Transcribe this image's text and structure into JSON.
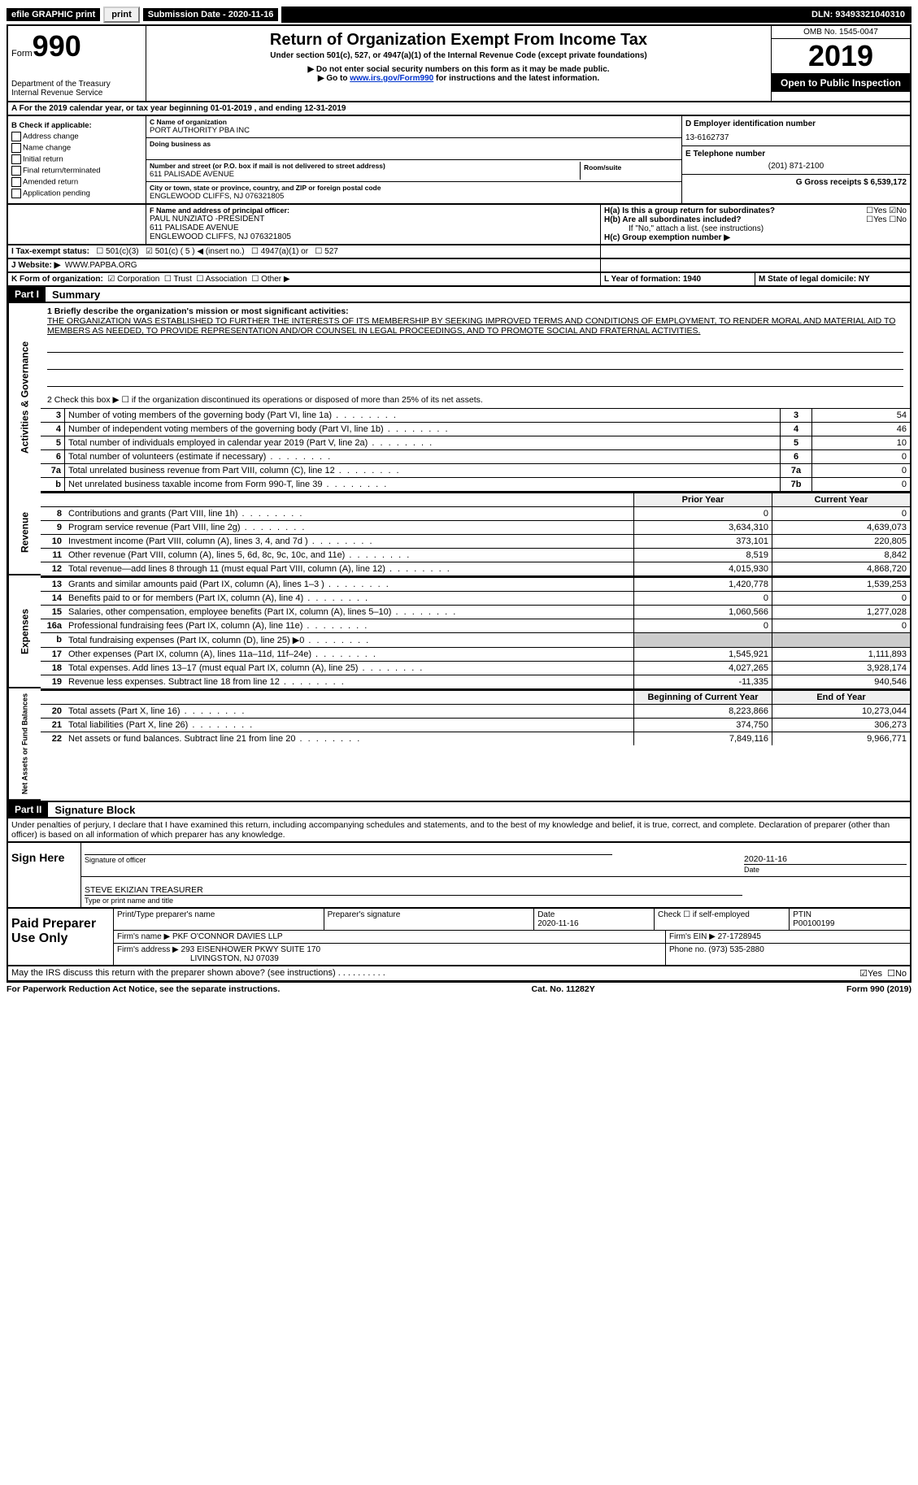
{
  "top": {
    "efile_label": "efile GRAPHIC print",
    "submission_label": "Submission Date - 2020-11-16",
    "dln_label": "DLN: 93493321040310"
  },
  "header": {
    "form_prefix": "Form",
    "form_number": "990",
    "dept1": "Department of the Treasury",
    "dept2": "Internal Revenue Service",
    "title": "Return of Organization Exempt From Income Tax",
    "subtitle": "Under section 501(c), 527, or 4947(a)(1) of the Internal Revenue Code (except private foundations)",
    "note1": "▶ Do not enter social security numbers on this form as it may be made public.",
    "note2_prefix": "▶ Go to ",
    "note2_link": "www.irs.gov/Form990",
    "note2_suffix": " for instructions and the latest information.",
    "omb": "OMB No. 1545-0047",
    "year": "2019",
    "open": "Open to Public Inspection"
  },
  "rowA": "A For the 2019 calendar year, or tax year beginning 01-01-2019   , and ending 12-31-2019",
  "checkB": {
    "title": "B Check if applicable:",
    "items": [
      "Address change",
      "Name change",
      "Initial return",
      "Final return/terminated",
      "Amended return",
      "Application pending"
    ]
  },
  "entity": {
    "c_label": "C Name of organization",
    "c_name": "PORT AUTHORITY PBA INC",
    "dba_label": "Doing business as",
    "addr_label": "Number and street (or P.O. box if mail is not delivered to street address)",
    "room_label": "Room/suite",
    "addr": "611 PALISADE AVENUE",
    "city_label": "City or town, state or province, country, and ZIP or foreign postal code",
    "city": "ENGLEWOOD CLIFFS, NJ  076321805",
    "d_label": "D Employer identification number",
    "ein": "13-6162737",
    "e_label": "E Telephone number",
    "phone": "(201) 871-2100",
    "g_label": "G Gross receipts $ 6,539,172",
    "f_label": "F Name and address of principal officer:",
    "f_name": "PAUL NUNZIATO -PRESIDENT",
    "f_addr1": "611 PALISADE AVENUE",
    "f_addr2": "ENGLEWOOD CLIFFS, NJ  076321805",
    "ha": "H(a)  Is this a group return for subordinates?",
    "hb": "H(b)  Are all subordinates included?",
    "hb_note": "If \"No,\" attach a list. (see instructions)",
    "hc": "H(c)  Group exemption number ▶",
    "yes": "Yes",
    "no": "No"
  },
  "rowI": {
    "label": "I   Tax-exempt status:",
    "opts": [
      "501(c)(3)",
      "501(c) ( 5 ) ◀ (insert no.)",
      "4947(a)(1) or",
      "527"
    ]
  },
  "rowJ": {
    "label": "J   Website: ▶",
    "value": "WWW.PAPBA.ORG"
  },
  "rowK": {
    "label": "K Form of organization:",
    "opts": [
      "Corporation",
      "Trust",
      "Association",
      "Other ▶"
    ],
    "l_label": "L Year of formation: 1940",
    "m_label": "M State of legal domicile: NY"
  },
  "part1": {
    "tag": "Part I",
    "title": "Summary"
  },
  "mission": {
    "q1": "1   Briefly describe the organization's mission or most significant activities:",
    "text": "THE ORGANIZATION WAS ESTABLISHED TO FURTHER THE INTERESTS OF ITS MEMBERSHIP BY SEEKING IMPROVED TERMS AND CONDITIONS OF EMPLOYMENT, TO RENDER MORAL AND MATERIAL AID TO MEMBERS AS NEEDED, TO PROVIDE REPRESENTATION AND/OR COUNSEL IN LEGAL PROCEEDINGS, AND TO PROMOTE SOCIAL AND FRATERNAL ACTIVITIES.",
    "q2": "2   Check this box ▶ ☐  if the organization discontinued its operations or disposed of more than 25% of its net assets."
  },
  "gov_lines": [
    {
      "n": "3",
      "d": "Number of voting members of the governing body (Part VI, line 1a)",
      "r": "3",
      "v": "54"
    },
    {
      "n": "4",
      "d": "Number of independent voting members of the governing body (Part VI, line 1b)",
      "r": "4",
      "v": "46"
    },
    {
      "n": "5",
      "d": "Total number of individuals employed in calendar year 2019 (Part V, line 2a)",
      "r": "5",
      "v": "10"
    },
    {
      "n": "6",
      "d": "Total number of volunteers (estimate if necessary)",
      "r": "6",
      "v": "0"
    },
    {
      "n": "7a",
      "d": "Total unrelated business revenue from Part VIII, column (C), line 12",
      "r": "7a",
      "v": "0"
    },
    {
      "n": "b",
      "d": "Net unrelated business taxable income from Form 990-T, line 39",
      "r": "7b",
      "v": "0"
    }
  ],
  "fin_hdr": {
    "c1": "Prior Year",
    "c2": "Current Year"
  },
  "revenue": [
    {
      "n": "8",
      "d": "Contributions and grants (Part VIII, line 1h)",
      "c1": "0",
      "c2": "0"
    },
    {
      "n": "9",
      "d": "Program service revenue (Part VIII, line 2g)",
      "c1": "3,634,310",
      "c2": "4,639,073"
    },
    {
      "n": "10",
      "d": "Investment income (Part VIII, column (A), lines 3, 4, and 7d )",
      "c1": "373,101",
      "c2": "220,805"
    },
    {
      "n": "11",
      "d": "Other revenue (Part VIII, column (A), lines 5, 6d, 8c, 9c, 10c, and 11e)",
      "c1": "8,519",
      "c2": "8,842"
    },
    {
      "n": "12",
      "d": "Total revenue—add lines 8 through 11 (must equal Part VIII, column (A), line 12)",
      "c1": "4,015,930",
      "c2": "4,868,720"
    }
  ],
  "expenses": [
    {
      "n": "13",
      "d": "Grants and similar amounts paid (Part IX, column (A), lines 1–3 )",
      "c1": "1,420,778",
      "c2": "1,539,253"
    },
    {
      "n": "14",
      "d": "Benefits paid to or for members (Part IX, column (A), line 4)",
      "c1": "0",
      "c2": "0"
    },
    {
      "n": "15",
      "d": "Salaries, other compensation, employee benefits (Part IX, column (A), lines 5–10)",
      "c1": "1,060,566",
      "c2": "1,277,028"
    },
    {
      "n": "16a",
      "d": "Professional fundraising fees (Part IX, column (A), line 11e)",
      "c1": "0",
      "c2": "0"
    },
    {
      "n": "b",
      "d": "Total fundraising expenses (Part IX, column (D), line 25) ▶0",
      "c1": "",
      "c2": "",
      "shade": true
    },
    {
      "n": "17",
      "d": "Other expenses (Part IX, column (A), lines 11a–11d, 11f–24e)",
      "c1": "1,545,921",
      "c2": "1,111,893"
    },
    {
      "n": "18",
      "d": "Total expenses. Add lines 13–17 (must equal Part IX, column (A), line 25)",
      "c1": "4,027,265",
      "c2": "3,928,174"
    },
    {
      "n": "19",
      "d": "Revenue less expenses. Subtract line 18 from line 12",
      "c1": "-11,335",
      "c2": "940,546"
    }
  ],
  "bal_hdr": {
    "c1": "Beginning of Current Year",
    "c2": "End of Year"
  },
  "balances": [
    {
      "n": "20",
      "d": "Total assets (Part X, line 16)",
      "c1": "8,223,866",
      "c2": "10,273,044"
    },
    {
      "n": "21",
      "d": "Total liabilities (Part X, line 26)",
      "c1": "374,750",
      "c2": "306,273"
    },
    {
      "n": "22",
      "d": "Net assets or fund balances. Subtract line 21 from line 20",
      "c1": "7,849,116",
      "c2": "9,966,771"
    }
  ],
  "vlabels": {
    "gov": "Activities & Governance",
    "rev": "Revenue",
    "exp": "Expenses",
    "bal": "Net Assets or Fund Balances"
  },
  "part2": {
    "tag": "Part II",
    "title": "Signature Block",
    "decl": "Under penalties of perjury, I declare that I have examined this return, including accompanying schedules and statements, and to the best of my knowledge and belief, it is true, correct, and complete. Declaration of preparer (other than officer) is based on all information of which preparer has any knowledge."
  },
  "sign": {
    "here": "Sign Here",
    "sig_label": "Signature of officer",
    "date": "2020-11-16",
    "date_label": "Date",
    "name": "STEVE EKIZIAN  TREASURER",
    "name_label": "Type or print name and title"
  },
  "prep": {
    "title": "Paid Preparer Use Only",
    "h": [
      "Print/Type preparer's name",
      "Preparer's signature",
      "Date",
      "Check ☐ if self-employed",
      "PTIN"
    ],
    "date": "2020-11-16",
    "ptin": "P00100199",
    "firm_label": "Firm's name    ▶",
    "firm": "PKF O'CONNOR DAVIES LLP",
    "ein_label": "Firm's EIN ▶",
    "ein": "27-1728945",
    "addr_label": "Firm's address ▶",
    "addr1": "293 EISENHOWER PKWY SUITE 170",
    "addr2": "LIVINGSTON, NJ  07039",
    "phone_label": "Phone no.",
    "phone": "(973) 535-2880"
  },
  "discuss": "May the IRS discuss this return with the preparer shown above? (see instructions)",
  "footer": {
    "left": "For Paperwork Reduction Act Notice, see the separate instructions.",
    "mid": "Cat. No. 11282Y",
    "right": "Form 990 (2019)"
  }
}
